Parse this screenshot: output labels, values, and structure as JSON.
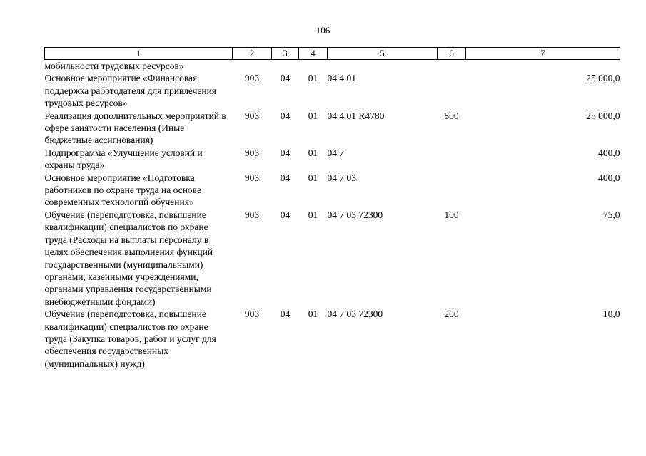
{
  "page": {
    "number": "106"
  },
  "table": {
    "columns": [
      "1",
      "2",
      "3",
      "4",
      "5",
      "6",
      "7"
    ],
    "rows": [
      {
        "name": "мобильности трудовых ресурсов»",
        "c2": "",
        "c3": "",
        "c4": "",
        "c5": "",
        "c6": "",
        "c7": ""
      },
      {
        "name": "Основное мероприятие «Финансовая поддержка работодателя для привлечения трудовых ресурсов»",
        "c2": "903",
        "c3": "04",
        "c4": "01",
        "c5": "04 4 01",
        "c6": "",
        "c7": "25 000,0"
      },
      {
        "name": "Реализация дополнительных мероприятий в сфере занятости населения (Иные бюджетные ассигнования)",
        "c2": "903",
        "c3": "04",
        "c4": "01",
        "c5": "04 4 01 R4780",
        "c6": "800",
        "c7": "25 000,0"
      },
      {
        "name": "Подпрограмма «Улучшение условий и охраны труда»",
        "c2": "903",
        "c3": "04",
        "c4": "01",
        "c5": "04 7",
        "c6": "",
        "c7": "400,0"
      },
      {
        "name": "Основное мероприятие «Подготовка работников по охране труда на основе современных технологий обучения»",
        "c2": "903",
        "c3": "04",
        "c4": "01",
        "c5": "04 7 03",
        "c6": "",
        "c7": "400,0"
      },
      {
        "name": "Обучение (переподготовка, повышение квалификации) специалистов по охране труда (Расходы на выплаты персоналу в целях обеспечения выполнения функций государственными (муниципальными) органами, казенными учреждениями, органами управления государственными внебюджетными фондами)",
        "c2": "903",
        "c3": "04",
        "c4": "01",
        "c5": "04 7 03 72300",
        "c6": "100",
        "c7": "75,0"
      },
      {
        "name": "Обучение (переподготовка, повышение квалификации) специалистов по охране труда (Закупка товаров, работ и услуг для обеспечения государственных (муниципальных) нужд)",
        "c2": "903",
        "c3": "04",
        "c4": "01",
        "c5": "04 7 03 72300",
        "c6": "200",
        "c7": "10,0"
      }
    ]
  }
}
